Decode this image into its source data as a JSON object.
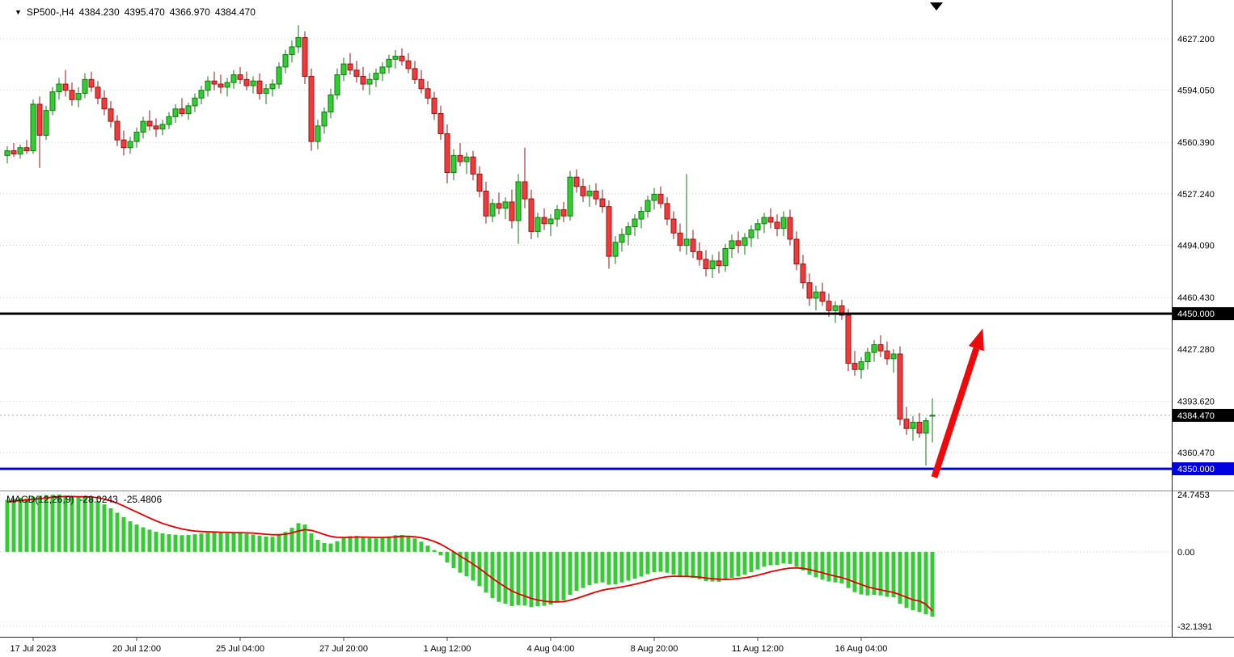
{
  "header": {
    "symbol_period": "SP500-,H4",
    "open": "4384.230",
    "high": "4395.470",
    "low": "4366.970",
    "close": "4384.470"
  },
  "icons": {
    "symbol_marker": "▼"
  },
  "chart_data": {
    "type": "candlestick",
    "symbol": "SP500-",
    "timeframe": "H4",
    "title": "SP500-,H4",
    "price_axis": {
      "ticks": [
        "4627.200",
        "4594.050",
        "4560.390",
        "4527.240",
        "4494.090",
        "4460.430",
        "4427.280",
        "4393.620",
        "4360.470"
      ]
    },
    "time_axis": {
      "ticks": [
        "17 Jul 2023",
        "20 Jul 12:00",
        "25 Jul 04:00",
        "27 Jul 20:00",
        "1 Aug 12:00",
        "4 Aug 04:00",
        "8 Aug 20:00",
        "11 Aug 12:00",
        "16 Aug 04:00"
      ]
    },
    "current_price": {
      "value": 4384.47,
      "label": "4384.470"
    },
    "levels": [
      {
        "name": "resistance-4450",
        "price": 4450.0,
        "label": "4450.000",
        "color": "#000000",
        "width": 3
      },
      {
        "name": "support-4350",
        "price": 4350.0,
        "label": "4350.000",
        "color": "#0000e0",
        "width": 3
      }
    ],
    "colors": {
      "bull_fill": "#33cc33",
      "bull_stroke": "#0f7a0f",
      "bear_fill": "#ee3b3b",
      "bear_stroke": "#971414",
      "grid": "#cfcfcf",
      "background": "#ffffff"
    },
    "candles": [
      [
        4552,
        4558,
        4547,
        4555
      ],
      [
        4555,
        4560,
        4551,
        4553
      ],
      [
        4553,
        4559,
        4550,
        4557
      ],
      [
        4557,
        4562,
        4553,
        4555
      ],
      [
        4555,
        4588,
        4553,
        4585
      ],
      [
        4585,
        4590,
        4544,
        4565
      ],
      [
        4565,
        4584,
        4562,
        4581
      ],
      [
        4581,
        4596,
        4578,
        4593
      ],
      [
        4593,
        4602,
        4588,
        4598
      ],
      [
        4598,
        4607,
        4590,
        4594
      ],
      [
        4594,
        4599,
        4584,
        4588
      ],
      [
        4588,
        4596,
        4583,
        4592
      ],
      [
        4592,
        4605,
        4589,
        4601
      ],
      [
        4601,
        4606,
        4593,
        4596
      ],
      [
        4596,
        4600,
        4585,
        4589
      ],
      [
        4589,
        4594,
        4578,
        4582
      ],
      [
        4582,
        4587,
        4570,
        4574
      ],
      [
        4574,
        4578,
        4558,
        4562
      ],
      [
        4562,
        4568,
        4552,
        4557
      ],
      [
        4557,
        4564,
        4553,
        4561
      ],
      [
        4561,
        4570,
        4557,
        4567
      ],
      [
        4567,
        4577,
        4563,
        4574
      ],
      [
        4574,
        4581,
        4568,
        4571
      ],
      [
        4571,
        4576,
        4564,
        4569
      ],
      [
        4569,
        4575,
        4565,
        4572
      ],
      [
        4572,
        4580,
        4569,
        4577
      ],
      [
        4577,
        4585,
        4573,
        4582
      ],
      [
        4582,
        4589,
        4577,
        4579
      ],
      [
        4579,
        4586,
        4575,
        4584
      ],
      [
        4584,
        4592,
        4580,
        4589
      ],
      [
        4589,
        4597,
        4585,
        4594
      ],
      [
        4594,
        4603,
        4590,
        4600
      ],
      [
        4600,
        4606,
        4594,
        4598
      ],
      [
        4598,
        4604,
        4592,
        4596
      ],
      [
        4596,
        4602,
        4590,
        4599
      ],
      [
        4599,
        4607,
        4595,
        4604
      ],
      [
        4604,
        4609,
        4598,
        4601
      ],
      [
        4601,
        4606,
        4594,
        4597
      ],
      [
        4597,
        4603,
        4592,
        4600
      ],
      [
        4600,
        4605,
        4588,
        4592
      ],
      [
        4592,
        4598,
        4585,
        4595
      ],
      [
        4595,
        4601,
        4590,
        4598
      ],
      [
        4598,
        4612,
        4595,
        4609
      ],
      [
        4609,
        4620,
        4605,
        4617
      ],
      [
        4617,
        4626,
        4612,
        4622
      ],
      [
        4622,
        4636,
        4618,
        4628
      ],
      [
        4628,
        4632,
        4598,
        4603
      ],
      [
        4603,
        4608,
        4555,
        4561
      ],
      [
        4561,
        4575,
        4556,
        4571
      ],
      [
        4571,
        4583,
        4566,
        4580
      ],
      [
        4580,
        4595,
        4576,
        4591
      ],
      [
        4591,
        4608,
        4588,
        4604
      ],
      [
        4604,
        4615,
        4600,
        4611
      ],
      [
        4611,
        4618,
        4604,
        4607
      ],
      [
        4607,
        4613,
        4599,
        4603
      ],
      [
        4603,
        4609,
        4594,
        4598
      ],
      [
        4598,
        4605,
        4591,
        4601
      ],
      [
        4601,
        4608,
        4596,
        4605
      ],
      [
        4605,
        4612,
        4600,
        4609
      ],
      [
        4609,
        4617,
        4605,
        4614
      ],
      [
        4614,
        4620,
        4608,
        4616
      ],
      [
        4616,
        4621,
        4610,
        4613
      ],
      [
        4613,
        4618,
        4605,
        4608
      ],
      [
        4608,
        4613,
        4598,
        4601
      ],
      [
        4601,
        4607,
        4592,
        4595
      ],
      [
        4595,
        4600,
        4585,
        4589
      ],
      [
        4589,
        4593,
        4575,
        4579
      ],
      [
        4579,
        4584,
        4562,
        4566
      ],
      [
        4566,
        4572,
        4534,
        4541
      ],
      [
        4541,
        4556,
        4536,
        4552
      ],
      [
        4552,
        4560,
        4545,
        4548
      ],
      [
        4548,
        4554,
        4540,
        4551
      ],
      [
        4551,
        4555,
        4536,
        4540
      ],
      [
        4540,
        4545,
        4525,
        4529
      ],
      [
        4529,
        4535,
        4508,
        4513
      ],
      [
        4513,
        4524,
        4509,
        4521
      ],
      [
        4521,
        4528,
        4514,
        4518
      ],
      [
        4518,
        4525,
        4511,
        4522
      ],
      [
        4522,
        4530,
        4505,
        4510
      ],
      [
        4510,
        4540,
        4495,
        4535
      ],
      [
        4535,
        4557,
        4518,
        4524
      ],
      [
        4524,
        4530,
        4498,
        4503
      ],
      [
        4503,
        4515,
        4499,
        4512
      ],
      [
        4512,
        4518,
        4504,
        4508
      ],
      [
        4508,
        4514,
        4500,
        4511
      ],
      [
        4511,
        4520,
        4506,
        4517
      ],
      [
        4517,
        4522,
        4509,
        4513
      ],
      [
        4513,
        4542,
        4510,
        4538
      ],
      [
        4538,
        4543,
        4528,
        4532
      ],
      [
        4532,
        4537,
        4522,
        4526
      ],
      [
        4526,
        4533,
        4519,
        4529
      ],
      [
        4529,
        4534,
        4520,
        4524
      ],
      [
        4524,
        4530,
        4515,
        4519
      ],
      [
        4519,
        4523,
        4479,
        4487
      ],
      [
        4487,
        4500,
        4482,
        4496
      ],
      [
        4496,
        4505,
        4490,
        4501
      ],
      [
        4501,
        4509,
        4494,
        4506
      ],
      [
        4506,
        4514,
        4500,
        4511
      ],
      [
        4511,
        4519,
        4505,
        4516
      ],
      [
        4516,
        4526,
        4512,
        4523
      ],
      [
        4523,
        4531,
        4517,
        4527
      ],
      [
        4527,
        4532,
        4518,
        4521
      ],
      [
        4521,
        4525,
        4507,
        4511
      ],
      [
        4511,
        4516,
        4498,
        4502
      ],
      [
        4502,
        4508,
        4490,
        4494
      ],
      [
        4494,
        4540,
        4488,
        4498
      ],
      [
        4498,
        4504,
        4486,
        4490
      ],
      [
        4490,
        4496,
        4481,
        4485
      ],
      [
        4485,
        4491,
        4474,
        4479
      ],
      [
        4479,
        4488,
        4473,
        4484
      ],
      [
        4484,
        4490,
        4476,
        4481
      ],
      [
        4481,
        4495,
        4477,
        4492
      ],
      [
        4492,
        4501,
        4486,
        4497
      ],
      [
        4497,
        4503,
        4489,
        4494
      ],
      [
        4494,
        4502,
        4488,
        4499
      ],
      [
        4499,
        4507,
        4493,
        4504
      ],
      [
        4504,
        4511,
        4498,
        4508
      ],
      [
        4508,
        4515,
        4502,
        4512
      ],
      [
        4512,
        4518,
        4505,
        4509
      ],
      [
        4509,
        4514,
        4500,
        4505
      ],
      [
        4505,
        4516,
        4500,
        4512
      ],
      [
        4512,
        4517,
        4494,
        4498
      ],
      [
        4498,
        4503,
        4478,
        4482
      ],
      [
        4482,
        4488,
        4466,
        4470
      ],
      [
        4470,
        4476,
        4455,
        4460
      ],
      [
        4460,
        4468,
        4452,
        4464
      ],
      [
        4464,
        4470,
        4455,
        4458
      ],
      [
        4458,
        4463,
        4448,
        4452
      ],
      [
        4452,
        4458,
        4444,
        4455
      ],
      [
        4455,
        4459,
        4446,
        4449
      ],
      [
        4449,
        4453,
        4413,
        4418
      ],
      [
        4418,
        4426,
        4410,
        4414
      ],
      [
        4414,
        4422,
        4408,
        4419
      ],
      [
        4419,
        4428,
        4414,
        4425
      ],
      [
        4425,
        4433,
        4419,
        4430
      ],
      [
        4430,
        4436,
        4422,
        4426
      ],
      [
        4426,
        4432,
        4417,
        4421
      ],
      [
        4421,
        4427,
        4412,
        4424
      ],
      [
        4424,
        4429,
        4378,
        4382
      ],
      [
        4382,
        4390,
        4372,
        4376
      ],
      [
        4376,
        4384,
        4368,
        4380
      ],
      [
        4380,
        4386,
        4370,
        4373
      ],
      [
        4373,
        4383,
        4352,
        4381
      ],
      [
        4384.23,
        4395.47,
        4366.97,
        4384.47
      ]
    ],
    "macd": {
      "label": "MACD(12,26,9)",
      "value": "-28.0243",
      "signal_value": "-25.4806",
      "scale_max": "24.7453",
      "scale_zero": "0.00",
      "scale_min": "-32.1391",
      "colors": {
        "histogram": "#33cc33",
        "signal": "#e00000"
      },
      "histogram": [
        22.5,
        23.0,
        23.4,
        23.1,
        23.8,
        24.2,
        24.5,
        24.6,
        24.74,
        24.3,
        23.9,
        23.5,
        23.8,
        23.2,
        22.0,
        20.5,
        18.8,
        16.9,
        15.0,
        13.2,
        11.8,
        10.6,
        9.6,
        8.7,
        8.0,
        7.6,
        7.4,
        7.2,
        7.3,
        7.6,
        7.9,
        8.3,
        8.4,
        8.2,
        8.0,
        8.1,
        8.2,
        7.8,
        7.5,
        7.0,
        6.6,
        6.5,
        7.2,
        8.6,
        10.4,
        12.4,
        11.8,
        8.0,
        5.2,
        3.8,
        3.6,
        4.6,
        6.0,
        6.8,
        6.9,
        6.4,
        5.9,
        5.8,
        6.1,
        6.7,
        7.2,
        7.3,
        6.8,
        5.8,
        4.4,
        2.7,
        0.8,
        -1.5,
        -4.6,
        -7.0,
        -9.0,
        -10.5,
        -12.4,
        -14.8,
        -17.6,
        -20.0,
        -21.6,
        -22.4,
        -23.4,
        -23.0,
        -23.2,
        -23.9,
        -23.5,
        -23.3,
        -22.8,
        -21.8,
        -20.9,
        -18.6,
        -16.8,
        -15.6,
        -14.4,
        -13.6,
        -13.2,
        -14.2,
        -14.0,
        -13.2,
        -12.4,
        -11.6,
        -10.7,
        -9.6,
        -8.8,
        -8.6,
        -9.0,
        -9.8,
        -10.6,
        -10.8,
        -11.2,
        -11.8,
        -12.6,
        -12.8,
        -12.9,
        -12.2,
        -11.2,
        -10.6,
        -9.8,
        -8.8,
        -7.6,
        -6.4,
        -5.8,
        -5.6,
        -5.0,
        -5.2,
        -6.4,
        -8.0,
        -9.8,
        -11.0,
        -12.0,
        -12.8,
        -13.2,
        -13.6,
        -15.6,
        -17.4,
        -18.4,
        -18.8,
        -18.6,
        -18.8,
        -19.4,
        -19.6,
        -22.4,
        -24.2,
        -25.2,
        -26.0,
        -27.0,
        -28.0243
      ],
      "signal": [
        21.5,
        21.9,
        22.2,
        22.4,
        22.7,
        23.0,
        23.3,
        23.6,
        23.8,
        23.9,
        23.9,
        23.8,
        23.8,
        23.7,
        23.4,
        22.8,
        22.0,
        21.0,
        19.8,
        18.5,
        17.2,
        15.9,
        14.6,
        13.4,
        12.3,
        11.4,
        10.6,
        9.9,
        9.4,
        9.0,
        8.8,
        8.7,
        8.6,
        8.5,
        8.4,
        8.3,
        8.3,
        8.2,
        8.1,
        7.9,
        7.6,
        7.4,
        7.4,
        7.6,
        8.2,
        9.0,
        9.6,
        9.3,
        8.5,
        7.5,
        6.7,
        6.3,
        6.2,
        6.3,
        6.4,
        6.4,
        6.3,
        6.2,
        6.2,
        6.3,
        6.5,
        6.7,
        6.7,
        6.5,
        6.1,
        5.4,
        4.5,
        3.3,
        1.7,
        0.0,
        -1.8,
        -3.5,
        -5.3,
        -7.2,
        -9.3,
        -11.4,
        -13.4,
        -15.2,
        -16.9,
        -18.1,
        -19.1,
        -20.1,
        -20.8,
        -21.3,
        -21.6,
        -21.6,
        -21.5,
        -20.9,
        -20.1,
        -19.2,
        -18.2,
        -17.3,
        -16.5,
        -16.0,
        -15.6,
        -15.1,
        -14.6,
        -14.0,
        -13.3,
        -12.6,
        -11.8,
        -11.2,
        -10.7,
        -10.5,
        -10.6,
        -10.6,
        -10.7,
        -10.9,
        -11.3,
        -11.6,
        -11.8,
        -11.9,
        -11.8,
        -11.5,
        -11.2,
        -10.7,
        -10.1,
        -9.4,
        -8.6,
        -8.0,
        -7.4,
        -7.0,
        -6.9,
        -7.1,
        -7.6,
        -8.3,
        -9.0,
        -9.8,
        -10.5,
        -11.1,
        -12.0,
        -13.1,
        -14.1,
        -15.1,
        -15.8,
        -16.4,
        -17.0,
        -17.5,
        -18.5,
        -19.6,
        -20.7,
        -21.2,
        -22.6,
        -25.48
      ]
    },
    "annotations": [
      {
        "type": "up-arrow",
        "color": "#ee0a0a",
        "from_bar": 143.3,
        "from_price": 4344.5,
        "to_bar": 150.8,
        "to_price": 4440.5
      }
    ]
  }
}
